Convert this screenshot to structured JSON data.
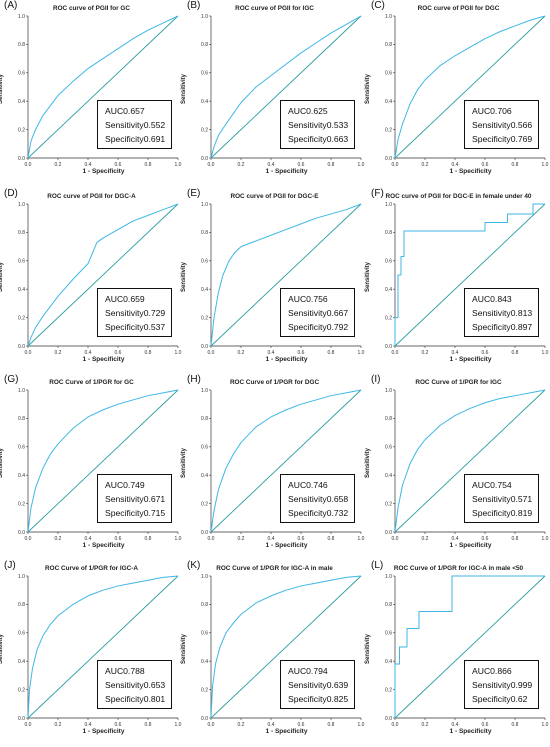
{
  "chart_data": [
    {
      "type": "line",
      "panel_label": "(A)",
      "title": "ROC curve of PGII for GC",
      "xlabel": "1 - Specificity",
      "ylabel": "Sensitivity",
      "xlim": [
        0,
        1
      ],
      "ylim": [
        0,
        1
      ],
      "x": [
        0,
        0.02,
        0.05,
        0.1,
        0.2,
        0.3,
        0.4,
        0.5,
        0.6,
        0.7,
        0.8,
        0.9,
        1.0
      ],
      "y": [
        0,
        0.12,
        0.2,
        0.3,
        0.44,
        0.54,
        0.63,
        0.7,
        0.77,
        0.84,
        0.9,
        0.95,
        1.0
      ],
      "stats": {
        "auc_label": "AUC",
        "auc": "0.657",
        "sens_label": "Sensitivity",
        "sens": "0.552",
        "spec_label": "Specificity",
        "spec": "0.691"
      }
    },
    {
      "type": "line",
      "panel_label": "(B)",
      "title": "ROC curve of PGII for IGC",
      "xlabel": "1 - Specificity",
      "ylabel": "Sensitivity",
      "xlim": [
        0,
        1
      ],
      "ylim": [
        0,
        1
      ],
      "x": [
        0,
        0.02,
        0.05,
        0.1,
        0.2,
        0.3,
        0.4,
        0.5,
        0.6,
        0.7,
        0.8,
        0.9,
        1.0
      ],
      "y": [
        0,
        0.08,
        0.16,
        0.24,
        0.39,
        0.5,
        0.58,
        0.66,
        0.74,
        0.81,
        0.88,
        0.94,
        1.0
      ],
      "stats": {
        "auc_label": "AUC",
        "auc": "0.625",
        "sens_label": "Sensitivity",
        "sens": "0.533",
        "spec_label": "Specificity",
        "spec": "0.663"
      }
    },
    {
      "type": "line",
      "panel_label": "(C)",
      "title": "ROC curve of PGII for DGC",
      "xlabel": "1 - Specificity",
      "ylabel": "Sensitivity",
      "xlim": [
        0,
        1
      ],
      "ylim": [
        0,
        1
      ],
      "x": [
        0,
        0.02,
        0.05,
        0.1,
        0.15,
        0.2,
        0.3,
        0.4,
        0.5,
        0.6,
        0.7,
        0.8,
        0.9,
        1.0
      ],
      "y": [
        0,
        0.13,
        0.24,
        0.38,
        0.48,
        0.55,
        0.65,
        0.72,
        0.78,
        0.84,
        0.89,
        0.93,
        0.97,
        1.0
      ],
      "stats": {
        "auc_label": "AUC",
        "auc": "0.706",
        "sens_label": "Sensitivity",
        "sens": "0.566",
        "spec_label": "Specificity",
        "spec": "0.769"
      }
    },
    {
      "type": "line",
      "panel_label": "(D)",
      "title": "ROC curve of PGII for DGC-A",
      "xlabel": "1 - Specificity",
      "ylabel": "Sensitivity",
      "xlim": [
        0,
        1
      ],
      "ylim": [
        0,
        1
      ],
      "x": [
        0,
        0.02,
        0.05,
        0.1,
        0.2,
        0.3,
        0.4,
        0.46,
        0.5,
        0.6,
        0.7,
        0.8,
        0.9,
        1.0
      ],
      "y": [
        0,
        0.06,
        0.13,
        0.21,
        0.35,
        0.47,
        0.58,
        0.73,
        0.76,
        0.82,
        0.88,
        0.92,
        0.96,
        1.0
      ],
      "stats": {
        "auc_label": "AUC",
        "auc": "0.659",
        "sens_label": "Sensitivity",
        "sens": "0.729",
        "spec_label": "Specificity",
        "spec": "0.537"
      }
    },
    {
      "type": "line",
      "panel_label": "(E)",
      "title": "ROC curve of PGII for DGC-E",
      "xlabel": "1 - Specificity",
      "ylabel": "Sensitivity",
      "xlim": [
        0,
        1
      ],
      "ylim": [
        0,
        1
      ],
      "x": [
        0,
        0.02,
        0.05,
        0.08,
        0.12,
        0.16,
        0.2,
        0.3,
        0.4,
        0.5,
        0.6,
        0.7,
        0.8,
        0.9,
        1.0
      ],
      "y": [
        0,
        0.2,
        0.38,
        0.5,
        0.6,
        0.66,
        0.7,
        0.74,
        0.78,
        0.82,
        0.86,
        0.9,
        0.93,
        0.96,
        1.0
      ],
      "stats": {
        "auc_label": "AUC",
        "auc": "0.756",
        "sens_label": "Sensitivity",
        "sens": "0.667",
        "spec_label": "Specificity",
        "spec": "0.792"
      }
    },
    {
      "type": "line",
      "panel_label": "(F)",
      "title": "ROC curve of PGII for DGC-E in female under 40",
      "xlabel": "1 - Specificity",
      "ylabel": "Sensitivity",
      "xlim": [
        0,
        1
      ],
      "ylim": [
        0,
        1
      ],
      "x": [
        0,
        0.0,
        0.02,
        0.02,
        0.04,
        0.04,
        0.06,
        0.06,
        0.1,
        0.1,
        0.6,
        0.6,
        0.75,
        0.75,
        0.92,
        0.92,
        1.0
      ],
      "y": [
        0,
        0.2,
        0.2,
        0.5,
        0.5,
        0.63,
        0.63,
        0.81,
        0.81,
        0.81,
        0.81,
        0.87,
        0.87,
        0.93,
        0.93,
        1.0,
        1.0
      ],
      "stats": {
        "auc_label": "AUC",
        "auc": "0.843",
        "sens_label": "Sensitivity",
        "sens": "0.813",
        "spec_label": "Specificity",
        "spec": "0.897"
      }
    },
    {
      "type": "line",
      "panel_label": "(G)",
      "title": "ROC Curve of 1/PGR for GC",
      "xlabel": "1 - Specificity",
      "ylabel": "Sensitivity",
      "xlim": [
        0,
        1
      ],
      "ylim": [
        0,
        1
      ],
      "x": [
        0,
        0.02,
        0.05,
        0.1,
        0.15,
        0.2,
        0.3,
        0.4,
        0.5,
        0.6,
        0.7,
        0.8,
        0.9,
        1.0
      ],
      "y": [
        0,
        0.17,
        0.31,
        0.45,
        0.55,
        0.62,
        0.73,
        0.81,
        0.86,
        0.9,
        0.93,
        0.96,
        0.98,
        1.0
      ],
      "stats": {
        "auc_label": "AUC",
        "auc": "0.749",
        "sens_label": "Sensitivity",
        "sens": "0.671",
        "spec_label": "Specificity",
        "spec": "0.715"
      }
    },
    {
      "type": "line",
      "panel_label": "(H)",
      "title": "ROC Curve of 1/PGR for DGC",
      "xlabel": "1 - Specificity",
      "ylabel": "Sensitivity",
      "xlim": [
        0,
        1
      ],
      "ylim": [
        0,
        1
      ],
      "x": [
        0,
        0.02,
        0.05,
        0.1,
        0.15,
        0.2,
        0.3,
        0.4,
        0.5,
        0.6,
        0.7,
        0.8,
        0.9,
        1.0
      ],
      "y": [
        0,
        0.15,
        0.3,
        0.45,
        0.55,
        0.63,
        0.74,
        0.81,
        0.86,
        0.9,
        0.93,
        0.96,
        0.98,
        1.0
      ],
      "stats": {
        "auc_label": "AUC",
        "auc": "0.746",
        "sens_label": "Sensitivity",
        "sens": "0.658",
        "spec_label": "Specificity",
        "spec": "0.732"
      }
    },
    {
      "type": "line",
      "panel_label": "(I)",
      "title": "ROC Curve of 1/PGR for IGC",
      "xlabel": "1 - Specificity",
      "ylabel": "Sensitivity",
      "xlim": [
        0,
        1
      ],
      "ylim": [
        0,
        1
      ],
      "x": [
        0,
        0.02,
        0.05,
        0.1,
        0.15,
        0.2,
        0.3,
        0.4,
        0.5,
        0.6,
        0.7,
        0.8,
        0.9,
        1.0
      ],
      "y": [
        0,
        0.17,
        0.33,
        0.48,
        0.58,
        0.65,
        0.75,
        0.82,
        0.87,
        0.91,
        0.94,
        0.96,
        0.98,
        1.0
      ],
      "stats": {
        "auc_label": "AUC",
        "auc": "0.754",
        "sens_label": "Sensitivity",
        "sens": "0.571",
        "spec_label": "Specificity",
        "spec": "0.819"
      }
    },
    {
      "type": "line",
      "panel_label": "(J)",
      "title": "ROC Curve of 1/PGR for IGC-A",
      "xlabel": "1 - Specificity",
      "ylabel": "Sensitivity",
      "xlim": [
        0,
        1
      ],
      "ylim": [
        0,
        1
      ],
      "x": [
        0,
        0.01,
        0.03,
        0.06,
        0.1,
        0.15,
        0.2,
        0.3,
        0.4,
        0.5,
        0.6,
        0.7,
        0.8,
        0.9,
        1.0
      ],
      "y": [
        0,
        0.2,
        0.35,
        0.48,
        0.58,
        0.66,
        0.72,
        0.8,
        0.86,
        0.9,
        0.93,
        0.95,
        0.97,
        0.99,
        1.0
      ],
      "stats": {
        "auc_label": "AUC",
        "auc": "0.788",
        "sens_label": "Sensitivity",
        "sens": "0.653",
        "spec_label": "Specificity",
        "spec": "0.801"
      }
    },
    {
      "type": "line",
      "panel_label": "(K)",
      "title": "ROC Curve of 1/PGR for IGC-A in male",
      "xlabel": "1 - Specificity",
      "ylabel": "Sensitivity",
      "xlim": [
        0,
        1
      ],
      "ylim": [
        0,
        1
      ],
      "x": [
        0,
        0.01,
        0.03,
        0.06,
        0.1,
        0.15,
        0.2,
        0.3,
        0.4,
        0.5,
        0.6,
        0.7,
        0.8,
        0.9,
        1.0
      ],
      "y": [
        0,
        0.22,
        0.38,
        0.5,
        0.6,
        0.67,
        0.73,
        0.81,
        0.86,
        0.9,
        0.93,
        0.95,
        0.97,
        0.99,
        1.0
      ],
      "stats": {
        "auc_label": "AUC",
        "auc": "0.794",
        "sens_label": "Sensitivity",
        "sens": "0.639",
        "spec_label": "Specificity",
        "spec": "0.825"
      }
    },
    {
      "type": "line",
      "panel_label": "(L)",
      "title": "ROC Curve of 1/PGR for IGC-A in male <50",
      "xlabel": "1 - Specificity",
      "ylabel": "Sensitivity",
      "xlim": [
        0,
        1
      ],
      "ylim": [
        0,
        1
      ],
      "x": [
        0,
        0.0,
        0.03,
        0.03,
        0.08,
        0.08,
        0.16,
        0.16,
        0.38,
        0.38,
        1.0
      ],
      "y": [
        0,
        0.38,
        0.38,
        0.5,
        0.5,
        0.63,
        0.63,
        0.75,
        0.75,
        1.0,
        1.0
      ],
      "stats": {
        "auc_label": "AUC",
        "auc": "0.866",
        "sens_label": "Sensitivity",
        "sens": "0.999",
        "spec_label": "Specificity",
        "spec": "0.62"
      }
    }
  ],
  "axis_ticks": [
    "0.0",
    "0.2",
    "0.4",
    "0.6",
    "0.8",
    "1.0"
  ],
  "colors": {
    "roc": "#3eb7e6",
    "diagonal": "#2e9ea0",
    "axis": "#333333"
  }
}
